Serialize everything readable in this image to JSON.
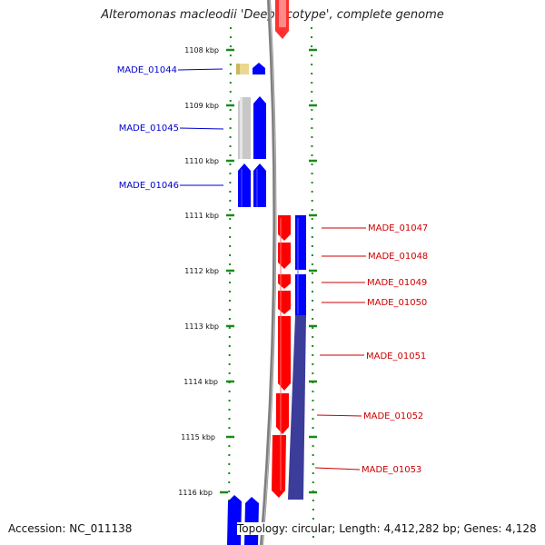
{
  "title": "Alteromonas macleodii 'Deep ecotype', complete genome",
  "footer": {
    "accession": "Accession: NC_011138",
    "topology": "Topology: circular; Length: 4,412,282 bp; Genes: 4,128"
  },
  "colors": {
    "backbone": "#7f7f7f",
    "tick": "#1a8a1a",
    "forward_label": "#0000cc",
    "reverse_label": "#cc0000",
    "forward_gene": "#0000ff",
    "reverse_gene": "#ff0000",
    "dark_blue_gene": "#3c3c9a",
    "grey_gene": "#c8c8c8",
    "yellow_gene": "#e8d890",
    "pink_gene": "#ffb0b0"
  },
  "scale_labels": [
    "1108 kbp",
    "1109 kbp",
    "1110 kbp",
    "1111 kbp",
    "1112 kbp",
    "1113 kbp",
    "1114 kbp",
    "1115 kbp",
    "1116 kbp"
  ],
  "left_gene_labels": [
    "MADE_01044",
    "MADE_01045",
    "MADE_01046"
  ],
  "right_gene_labels": [
    "MADE_01047",
    "MADE_01048",
    "MADE_01049",
    "MADE_01050",
    "MADE_01051",
    "MADE_01052",
    "MADE_01053"
  ]
}
